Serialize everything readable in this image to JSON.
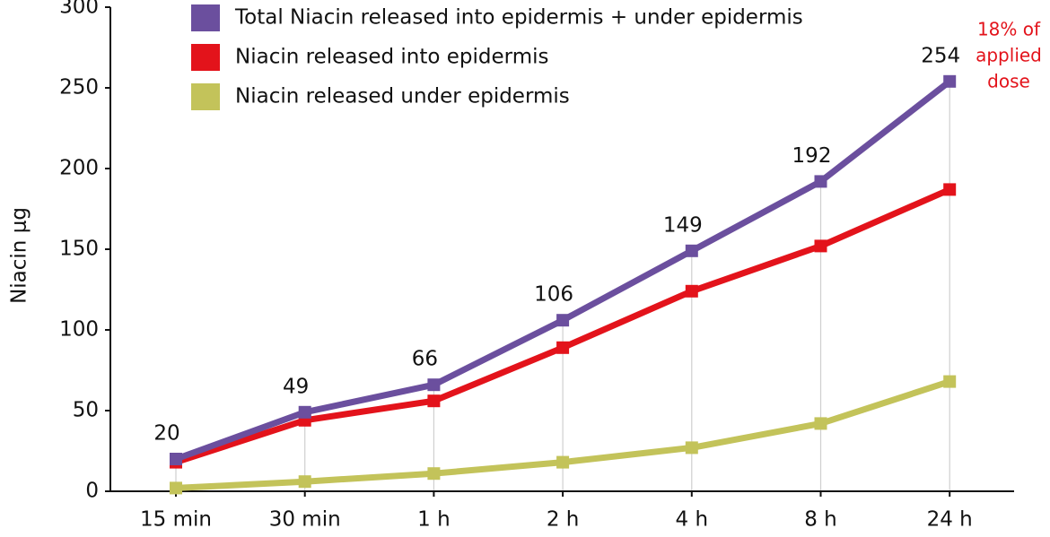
{
  "chart_data": {
    "type": "line",
    "y_label": "Niacin  μg",
    "categories": [
      "15 min",
      "30 min",
      "1 h",
      "2 h",
      "4 h",
      "8 h",
      "24 h"
    ],
    "series": [
      {
        "name": "Total Niacin released into epidermis + under epidermis",
        "color": "#6b4f9e",
        "values": [
          20,
          49,
          66,
          106,
          149,
          192,
          254
        ]
      },
      {
        "name": "Niacin released into epidermis",
        "color": "#e3131b",
        "values": [
          18,
          44,
          56,
          89,
          124,
          152,
          187
        ]
      },
      {
        "name": "Niacin released under epidermis",
        "color": "#c3c35a",
        "values": [
          2,
          6,
          11,
          18,
          27,
          42,
          68
        ]
      }
    ],
    "ylim": [
      0,
      300
    ],
    "yticks": [
      0,
      50,
      100,
      150,
      200,
      250,
      300
    ],
    "annotation": {
      "lines": [
        "18% of",
        "applied",
        "dose"
      ],
      "color": "#e3131b"
    }
  }
}
